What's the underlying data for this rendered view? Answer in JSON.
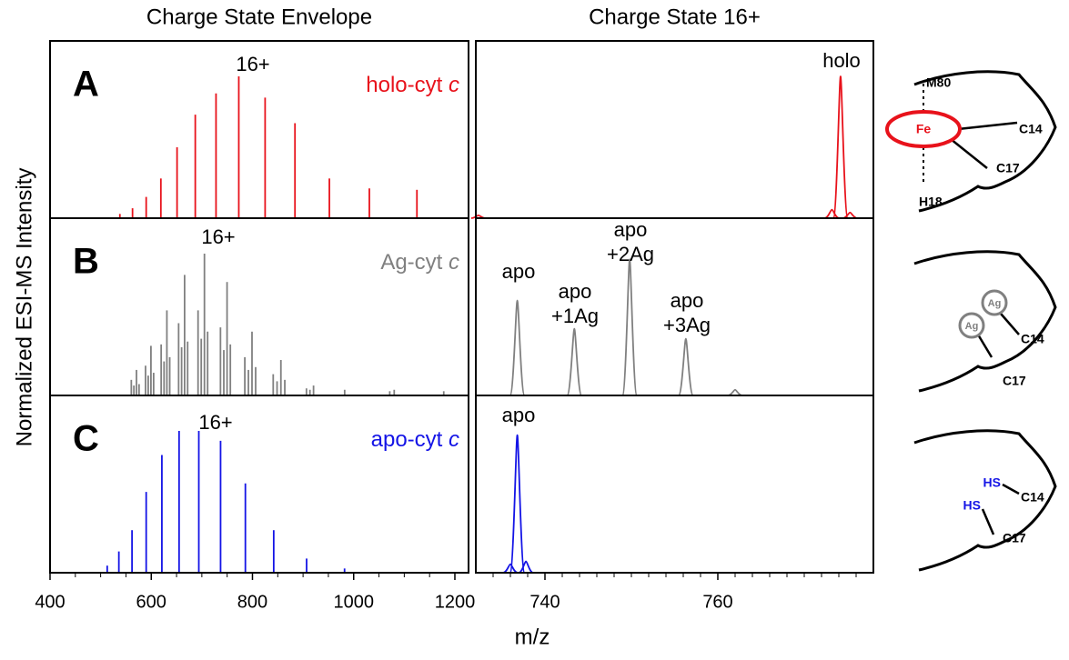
{
  "figure": {
    "ylabel": "Normalized ESI-MS Intensity",
    "xlabel": "m/z"
  },
  "chart_data": [
    {
      "type": "stick",
      "title": "Charge State Envelope",
      "xlim": [
        400,
        1227
      ],
      "xticks": [
        400,
        600,
        800,
        1000,
        1200
      ],
      "xminorticks": [
        450,
        500,
        550,
        650,
        700,
        750,
        850,
        900,
        950,
        1050,
        1100,
        1150
      ],
      "ylim": [
        0,
        125
      ],
      "panels": [
        {
          "letter": "A",
          "label": "holo-cyt",
          "label_italic": "c",
          "peak_label": "16+",
          "color": "#e8121b",
          "x": [
            538,
            563,
            590,
            619,
            651,
            687,
            728,
            773,
            825,
            884,
            952,
            1031,
            1125
          ],
          "values": [
            3,
            7,
            15,
            28,
            50,
            73,
            88,
            100,
            85,
            67,
            28,
            21,
            20
          ]
        },
        {
          "letter": "B",
          "label": "Ag-cyt",
          "label_italic": "c",
          "peak_label": "16+",
          "color": "#808080",
          "x": [
            560.6,
            565.7,
            570.8,
            575.9,
            588.7,
            594.0,
            599.4,
            604.7,
            619.6,
            625.3,
            630.9,
            636.5,
            654.1,
            660.0,
            665.9,
            671.9,
            692.5,
            698.8,
            705.1,
            711.4,
            736.8,
            743.4,
            749.8,
            756.3,
            784.9,
            792.0,
            799.1,
            806.3,
            841.0,
            848.6,
            856.2,
            863.9,
            906.7,
            913.6,
            920.7,
            982.2,
            1071.3,
            1080.1,
            1178
          ],
          "values": [
            11,
            7,
            18,
            8,
            21,
            14,
            35,
            16,
            36,
            24,
            60,
            27,
            51,
            34,
            85,
            38,
            60,
            40,
            100,
            45,
            48,
            32,
            80,
            36,
            27,
            18,
            45,
            20,
            15,
            10,
            25,
            11,
            5,
            4,
            7,
            4,
            3,
            4,
            3
          ]
        },
        {
          "letter": "C",
          "label": "apo-cyt",
          "label_italic": "c",
          "peak_label": "16+",
          "color": "#1414e6",
          "x": [
            513,
            536,
            562,
            590,
            621,
            655,
            694,
            737,
            786,
            842,
            907,
            982
          ],
          "values": [
            5,
            15,
            30,
            57,
            83,
            100,
            100,
            93,
            63,
            30,
            10,
            3
          ]
        }
      ]
    },
    {
      "type": "profile",
      "title": "Charge State 16+",
      "xlim": [
        732,
        778
      ],
      "xticks": [
        740,
        760
      ],
      "xminorticks": [
        734,
        736,
        738,
        742,
        744,
        746,
        748,
        750,
        752,
        754,
        756,
        758,
        762,
        764,
        766,
        768,
        770,
        772,
        774,
        776
      ],
      "ylim": [
        0,
        125
      ],
      "panels": [
        {
          "color": "#e8121b",
          "x": [
            732.3,
            773.2,
            774.2,
            775.3
          ],
          "values": [
            2,
            6,
            100,
            4
          ],
          "annotations": [
            [
              "holo"
            ]
          ]
        },
        {
          "color": "#808080",
          "x": [
            736.8,
            743.4,
            749.8,
            756.3,
            762.0
          ],
          "values": [
            67,
            47,
            96,
            40,
            4
          ],
          "annotations": [
            [
              "apo"
            ],
            [
              "apo",
              "+1Ag"
            ],
            [
              "apo",
              "+2Ag"
            ],
            [
              "apo",
              "+3Ag"
            ]
          ]
        },
        {
          "color": "#1414e6",
          "x": [
            736.0,
            736.8,
            737.8
          ],
          "values": [
            6,
            97,
            8
          ],
          "annotations": [
            [
              "apo"
            ]
          ]
        }
      ]
    }
  ],
  "schematics": [
    {
      "labels": [
        "M80",
        "Fe",
        "C14",
        "C17",
        "H18"
      ]
    },
    {
      "labels": [
        "Ag",
        "Ag",
        "C14",
        "C17"
      ]
    },
    {
      "labels": [
        "HS",
        "HS",
        "C14",
        "C17"
      ]
    }
  ]
}
